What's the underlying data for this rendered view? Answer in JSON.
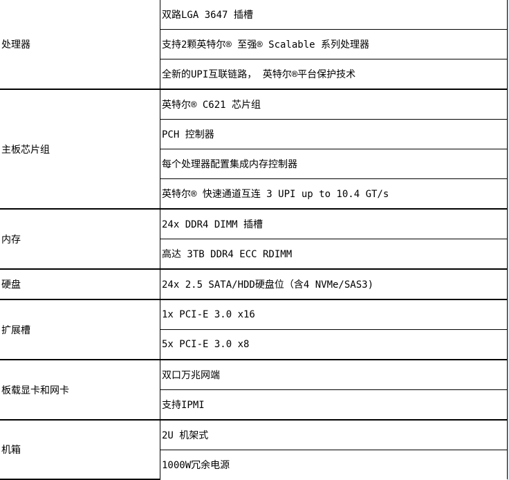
{
  "groups": [
    {
      "label": "处理器",
      "items": [
        "双路LGA 3647 插槽",
        "支持2颗英特尔® 至强® Scalable 系列处理器",
        "全新的UPI互联链路， 英特尔®平台保护技术"
      ]
    },
    {
      "label": "主板芯片组",
      "items": [
        "英特尔® C621 芯片组",
        "PCH 控制器",
        "每个处理器配置集成内存控制器",
        "英特尔® 快速通道互连  3 UPI up to 10.4 GT/s"
      ]
    },
    {
      "label": "内存",
      "items": [
        "24x  DDR4 DIMM 插槽",
        "高达 3TB DDR4 ECC RDIMM"
      ]
    },
    {
      "label": "硬盘",
      "items": [
        "24x 2.5  SATA/HDD硬盘位（含4 NVMe/SAS3)"
      ]
    },
    {
      "label": "扩展槽",
      "items": [
        "1x PCI-E 3.0 x16",
        "5x PCI-E 3.0 x8"
      ]
    },
    {
      "label": "板载显卡和网卡",
      "items": [
        "双口万兆网端",
        "支持IPMI"
      ]
    },
    {
      "label": "机箱",
      "items": [
        "2U 机架式",
        "1000W冗余电源"
      ]
    }
  ]
}
